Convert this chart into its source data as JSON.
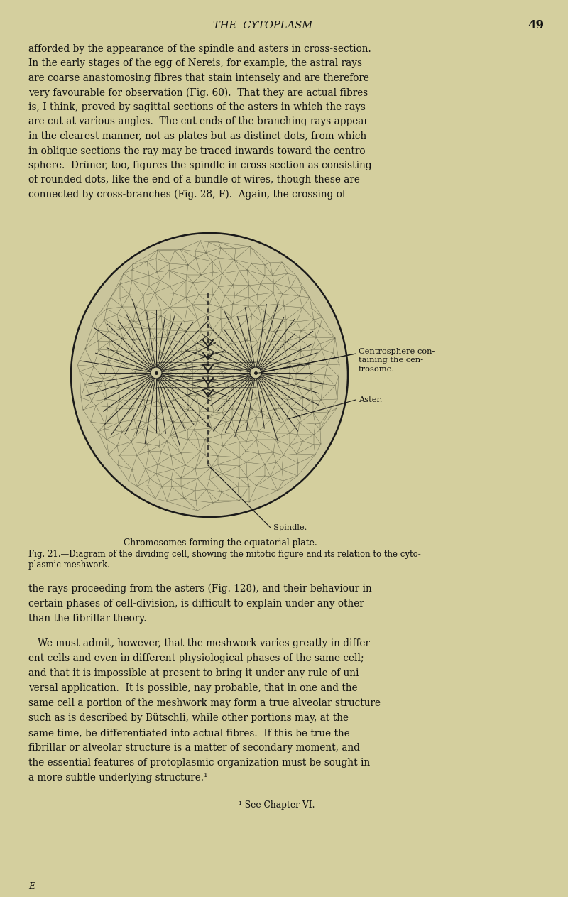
{
  "bg_color": "#d4cf9e",
  "page_width": 8.0,
  "page_height": 12.63,
  "title_text": "THE  CYTOPLASM",
  "page_number": "49",
  "para1_lines": [
    "afforded by the appearance of the spindle and asters in cross-section.",
    "In the early stages of the egg of ​Nereis, for example, the astral rays",
    "are coarse anastomosing fibres that stain intensely and​ are therefore",
    "very favourable for observation (Fig. 60).  That they are actual fibres",
    "is, I think, proved by sagittal sections of the asters in which the rays",
    "are cut at various angles.  The cut ends of the branching rays appear",
    "in the clearest manner, not as plates but as distinct dots, from which",
    "in oblique sections the ray may be traced inwards toward the centro-",
    "sphere.  Drüner, too, figures the spindle in cross-section as consisting",
    "of rounded dots, like the end of a bundle of wires, though these are",
    "connected by cross-branches (Fig. 28, F).  Again, the crossing of"
  ],
  "para2_lines": [
    "the rays proceeding from the asters (Fig. 128), and their behaviour in",
    "certain phases of cell-division, is difficult to explain under any other",
    "than the fibrillar theory."
  ],
  "para3_lines": [
    "   We must admit, however, that the meshwork varies greatly in differ-",
    "ent cells and even in different physiological phases of the same cell;",
    "and that it is impossible at present to bring it under any rule of uni-",
    "versal application.  It is possible, nay probable, that in one and the",
    "same cell a portion of the meshwork may form a true alveolar structure",
    "such as is described by Bütschli, while other portions may, at the",
    "same time, be differentiated into actual fibres.  If this be true the",
    "fibrillar or alveolar structure is a matter of secondary moment, and",
    "the essential features of protoplasmic organization must be sought in",
    "a more subtle underlying structure.¹"
  ],
  "footnote": "¹ See Chapter VI.",
  "footer_letter": "E",
  "fig_caption1": "Chromosomes forming the equatorial plate.",
  "fig_caption2": "Fig. 21.—Diagram of the dividing cell, showing the mitotic figure and its relation to the cyto-",
  "fig_caption3": "plasmic meshwork.",
  "label_centrosphere": "Centrosphere con-\ntaining the cen-\ntrosome.",
  "label_aster": "Aster.",
  "label_spindle": "Spindle.",
  "text_color": "#111111",
  "line_color": "#1a1a1a",
  "cell_line_color": "#555540",
  "diagram_fill": "#cac59c"
}
